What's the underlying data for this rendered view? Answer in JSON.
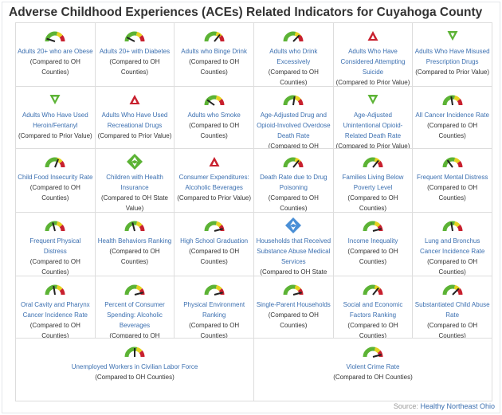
{
  "title": "Adverse Childhood Experiences (ACEs) Related Indicators for Cuyahoga County",
  "colors": {
    "link": "#3b6fb0",
    "green": "#5cb335",
    "yellow": "#e6d21f",
    "red": "#c8202e",
    "blue": "#4a8fd6"
  },
  "indicators": [
    {
      "name": "Adults 20+ who are Obese",
      "comparison": "(Compared to OH Counties)",
      "icon": "gauge",
      "value": 0.1
    },
    {
      "name": "Adults 20+ with Diabetes",
      "comparison": "(Compared to OH Counties)",
      "icon": "gauge",
      "value": 0.15
    },
    {
      "name": "Adults who Binge Drink",
      "comparison": "(Compared to OH Counties)",
      "icon": "gauge",
      "value": 0.72
    },
    {
      "name": "Adults who Drink Excessively",
      "comparison": "(Compared to OH Counties)",
      "icon": "gauge",
      "value": 0.75
    },
    {
      "name": "Adults Who Have Considered Attempting Suicide",
      "comparison": "(Compared to Prior Value)",
      "icon": "triangle-up-red"
    },
    {
      "name": "Adults Who Have Misused Prescription Drugs",
      "comparison": "(Compared to Prior Value)",
      "icon": "triangle-down-green"
    },
    {
      "name": "Adults Who Have Used Heroin/Fentanyl",
      "comparison": "(Compared to Prior Value)",
      "icon": "triangle-down-green"
    },
    {
      "name": "Adults Who Have Used Recreational Drugs",
      "comparison": "(Compared to Prior Value)",
      "icon": "triangle-up-red"
    },
    {
      "name": "Adults who Smoke",
      "comparison": "(Compared to OH Counties)",
      "icon": "gauge",
      "value": 0.2
    },
    {
      "name": "Age-Adjusted Drug and Opioid-Involved Overdose Death Rate",
      "comparison": "(Compared to OH Counties)",
      "icon": "gauge",
      "value": 0.55
    },
    {
      "name": "Age-Adjusted Unintentional Opioid-Related Death Rate",
      "comparison": "(Compared to Prior Value)",
      "icon": "triangle-down-green"
    },
    {
      "name": "All Cancer Incidence Rate",
      "comparison": "(Compared to OH Counties)",
      "icon": "gauge",
      "value": 0.45
    },
    {
      "name": "Child Food Insecurity Rate",
      "comparison": "(Compared to OH Counties)",
      "icon": "gauge",
      "value": 0.62
    },
    {
      "name": "Children with Health Insurance",
      "comparison": "(Compared to OH State Value)",
      "icon": "diamond-green"
    },
    {
      "name": "Consumer Expenditures: Alcoholic Beverages",
      "comparison": "(Compared to Prior Value)",
      "icon": "triangle-up-red"
    },
    {
      "name": "Death Rate due to Drug Poisoning",
      "comparison": "(Compared to OH Counties)",
      "icon": "gauge",
      "value": 0.72
    },
    {
      "name": "Families Living Below Poverty Level",
      "comparison": "(Compared to OH Counties)",
      "icon": "gauge",
      "value": 0.72
    },
    {
      "name": "Frequent Mental Distress",
      "comparison": "(Compared to OH Counties)",
      "icon": "gauge",
      "value": 0.3
    },
    {
      "name": "Frequent Physical Distress",
      "comparison": "(Compared to OH Counties)",
      "icon": "gauge",
      "value": 0.42
    },
    {
      "name": "Health Behaviors Ranking",
      "comparison": "(Compared to OH Counties)",
      "icon": "gauge",
      "value": 0.42
    },
    {
      "name": "High School Graduation",
      "comparison": "(Compared to OH Counties)",
      "icon": "gauge",
      "value": 0.92
    },
    {
      "name": "Households that Received Substance Abuse Medical Services",
      "comparison": "(Compared to OH State Value)",
      "icon": "diamond-blue"
    },
    {
      "name": "Income Inequality",
      "comparison": "(Compared to OH Counties)",
      "icon": "gauge",
      "value": 0.92
    },
    {
      "name": "Lung and Bronchus Cancer Incidence Rate",
      "comparison": "(Compared to OH Counties)",
      "icon": "gauge",
      "value": 0.45
    },
    {
      "name": "Oral Cavity and Pharynx Cancer Incidence Rate",
      "comparison": "(Compared to OH Counties)",
      "icon": "gauge",
      "value": 0.45
    },
    {
      "name": "Percent of Consumer Spending: Alcoholic Beverages",
      "comparison": "(Compared to OH Counties)",
      "icon": "gauge",
      "value": 0.92
    },
    {
      "name": "Physical Environment Ranking",
      "comparison": "(Compared to OH Counties)",
      "icon": "gauge",
      "value": 0.92
    },
    {
      "name": "Single-Parent Households",
      "comparison": "(Compared to OH Counties)",
      "icon": "gauge",
      "value": 0.92
    },
    {
      "name": "Social and Economic Factors Ranking",
      "comparison": "(Compared to OH Counties)",
      "icon": "gauge",
      "value": 0.72
    },
    {
      "name": "Substantiated Child Abuse Rate",
      "comparison": "(Compared to OH Counties)",
      "icon": "gauge",
      "value": 0.75
    },
    {
      "name": "Unemployed Workers in Civilian Labor Force",
      "comparison": "(Compared to OH Counties)",
      "icon": "gauge",
      "value": 0.5
    },
    {
      "name": "Violent Crime Rate",
      "comparison": "(Compared to OH Counties)",
      "icon": "gauge",
      "value": 0.92
    }
  ],
  "source": {
    "label": "Source:",
    "link": "Healthy Northeast Ohio"
  }
}
